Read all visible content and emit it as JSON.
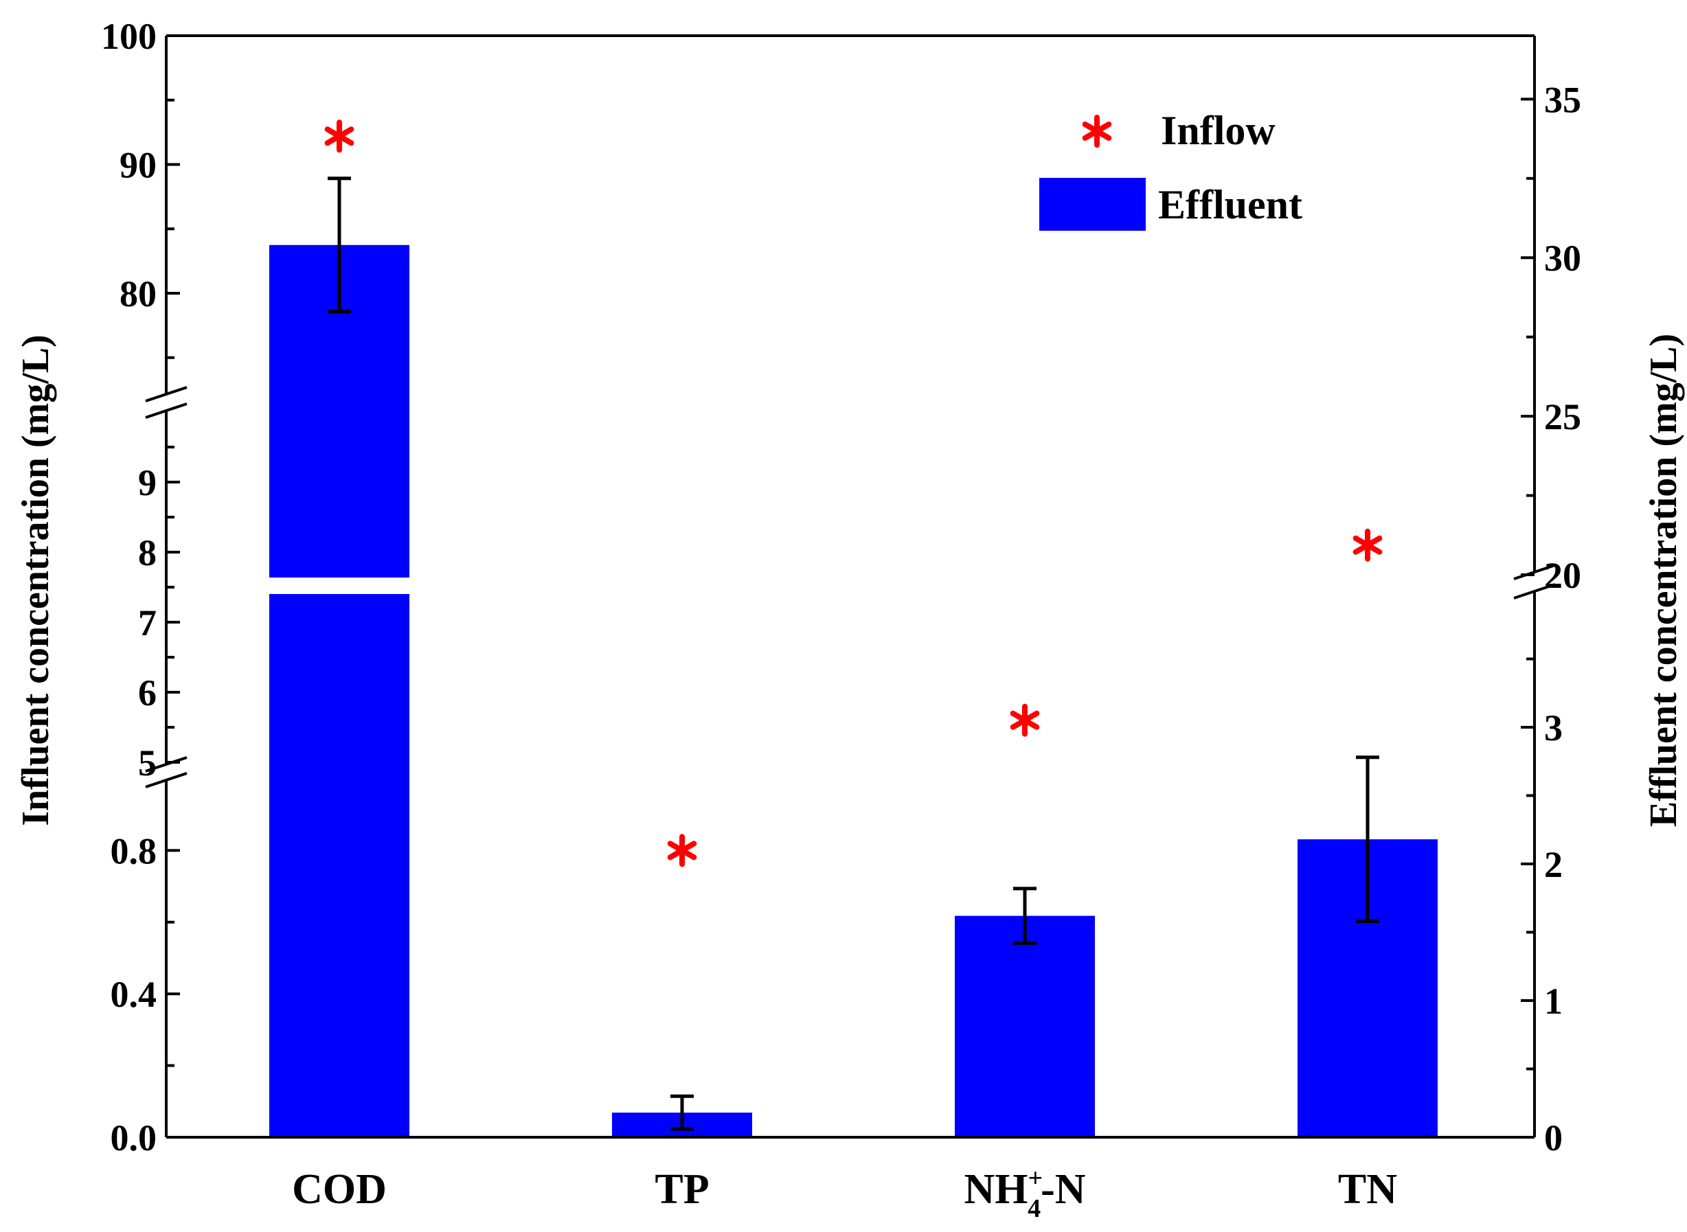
{
  "chart_data": {
    "type": "bar",
    "categories": [
      "COD",
      "TP",
      "NH4+-N",
      "TN"
    ],
    "category_labels": [
      {
        "main": "COD",
        "sup": "",
        "sub": "",
        "suffix": ""
      },
      {
        "main": "TP",
        "sup": "",
        "sub": "",
        "suffix": ""
      },
      {
        "main": "NH",
        "sup": "+",
        "sub": "4",
        "suffix": "-N"
      },
      {
        "main": "TN",
        "sup": "",
        "sub": "",
        "suffix": ""
      }
    ],
    "series": [
      {
        "name": "Inflow",
        "type": "scatter",
        "axis": "left",
        "marker": "asterisk",
        "color": "#ff0000",
        "values": [
          92.2,
          0.8,
          5.6,
          8.1
        ]
      },
      {
        "name": "Effluent",
        "type": "bar",
        "axis": "right",
        "color": "#0000ff",
        "values": [
          30.4,
          0.18,
          1.62,
          2.18
        ],
        "errors": [
          2.1,
          0.12,
          0.2,
          0.6
        ]
      }
    ],
    "left_axis": {
      "title": "Influent concentration (mg/L)",
      "segments": [
        {
          "range": [
            0,
            1
          ],
          "ticks": [
            "0.0",
            "0.4",
            "0.8"
          ]
        },
        {
          "range": [
            5,
            10
          ],
          "ticks": [
            "5",
            "6",
            "7",
            "8",
            "9"
          ]
        },
        {
          "range": [
            72,
            100
          ],
          "ticks": [
            "80",
            "90",
            "100"
          ]
        }
      ]
    },
    "right_axis": {
      "title": "Effluent concentration (mg/L)",
      "segments": [
        {
          "range": [
            0,
            4
          ],
          "ticks": [
            "0",
            "1",
            "2",
            "3"
          ]
        },
        {
          "range": [
            20,
            37
          ],
          "ticks": [
            "20",
            "25",
            "30",
            "35"
          ]
        }
      ]
    },
    "legend": {
      "position": "top-right",
      "entries": [
        "Inflow",
        "Effluent"
      ]
    },
    "grid": false
  }
}
